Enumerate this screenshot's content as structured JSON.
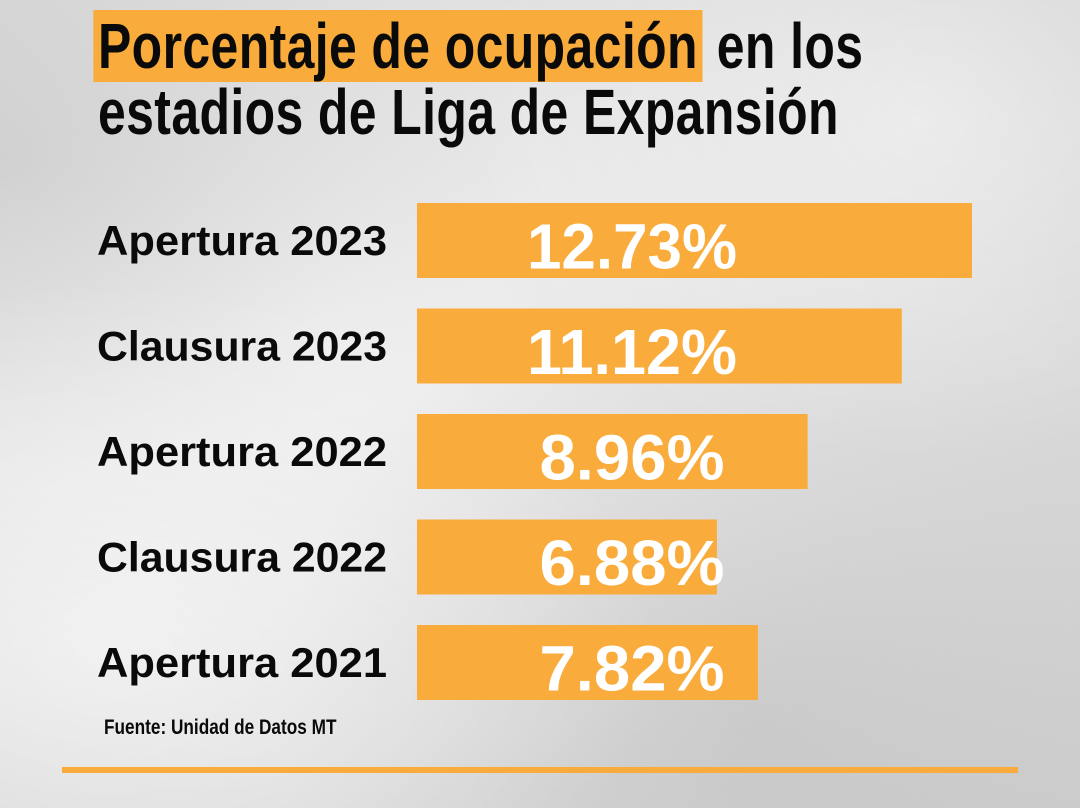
{
  "title": {
    "highlighted": "Porcentaje de ocupación",
    "rest_line1": " en los",
    "line2": "estadios de Liga de Expansión"
  },
  "colors": {
    "accent": "#f9ac3c",
    "value_text": "#ffffff",
    "label_text": "#0a0a0a"
  },
  "chart_data": {
    "type": "bar",
    "orientation": "horizontal",
    "title": "Porcentaje de ocupación en los estadios de Liga de Expansión",
    "categories": [
      "Apertura 2023",
      "Clausura 2023",
      "Apertura 2022",
      "Clausura 2022",
      "Apertura 2021"
    ],
    "values": [
      12.73,
      11.12,
      8.96,
      6.88,
      7.82
    ],
    "value_labels": [
      "12.73%",
      "11.12%",
      "8.96%",
      "6.88%",
      "7.82%"
    ],
    "xlim": [
      0,
      13
    ]
  },
  "source": "Fuente: Unidad de Datos MT"
}
